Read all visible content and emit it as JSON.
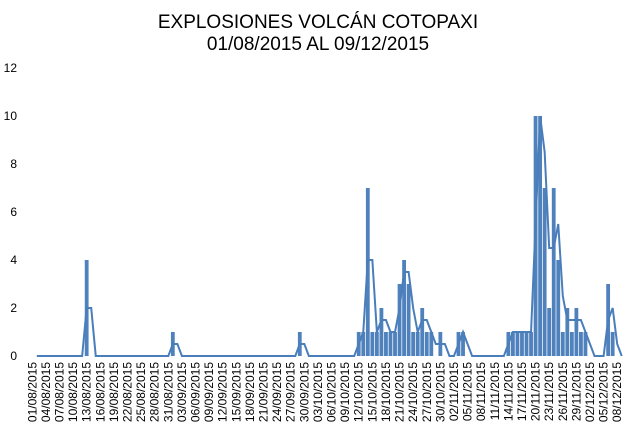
{
  "chart_data": {
    "type": "bar",
    "title": "EXPLOSIONES  VOLCÁN COTOPAXI",
    "subtitle": "01/08/2015 AL 09/12/2015",
    "categories": [
      "01/08/2015",
      null,
      null,
      "04/08/2015",
      null,
      null,
      "07/08/2015",
      null,
      null,
      "10/08/2015",
      null,
      null,
      "13/08/2015",
      null,
      null,
      "16/08/2015",
      null,
      null,
      "19/08/2015",
      null,
      null,
      "22/08/2015",
      null,
      null,
      "25/08/2015",
      null,
      null,
      "28/08/2015",
      null,
      null,
      "31/08/2015",
      null,
      null,
      "03/09/2015",
      null,
      null,
      "06/09/2015",
      null,
      null,
      "09/09/2015",
      null,
      null,
      "12/09/2015",
      null,
      null,
      "15/09/2015",
      null,
      null,
      "18/09/2015",
      null,
      null,
      "21/09/2015",
      null,
      null,
      "24/09/2015",
      null,
      null,
      "27/09/2015",
      null,
      null,
      "30/09/2015",
      null,
      null,
      "03/10/2015",
      null,
      null,
      "06/10/2015",
      null,
      null,
      "09/10/2015",
      null,
      null,
      "12/10/2015",
      null,
      null,
      "15/10/2015",
      null,
      null,
      "18/10/2015",
      null,
      null,
      "21/10/2015",
      null,
      null,
      "24/10/2015",
      null,
      null,
      "27/10/2015",
      null,
      null,
      "30/10/2015",
      null,
      null,
      "02/11/2015",
      null,
      null,
      "05/11/2015",
      null,
      null,
      "08/11/2015",
      null,
      null,
      "11/11/2015",
      null,
      null,
      "14/11/2015",
      null,
      null,
      "17/11/2015",
      null,
      null,
      "20/11/2015",
      null,
      null,
      "23/11/2015",
      null,
      null,
      "26/11/2015",
      null,
      null,
      "29/11/2015",
      null,
      null,
      "02/12/2015",
      null,
      null,
      "05/12/2015",
      null,
      null,
      "08/12/2015",
      null
    ],
    "series": [
      {
        "type": "bar",
        "color": "#4f81bd",
        "values": [
          0,
          0,
          0,
          0,
          0,
          0,
          0,
          0,
          0,
          0,
          0,
          0,
          4,
          0,
          0,
          0,
          0,
          0,
          0,
          0,
          0,
          0,
          0,
          0,
          0,
          0,
          0,
          0,
          0,
          0,
          0,
          1,
          0,
          0,
          0,
          0,
          0,
          0,
          0,
          0,
          0,
          0,
          0,
          0,
          0,
          0,
          0,
          0,
          0,
          0,
          0,
          0,
          0,
          0,
          0,
          0,
          0,
          0,
          0,
          1,
          0,
          0,
          0,
          0,
          0,
          0,
          0,
          0,
          0,
          0,
          0,
          0,
          1,
          1,
          7,
          1,
          1,
          2,
          1,
          1,
          1,
          3,
          4,
          3,
          1,
          1,
          2,
          1,
          1,
          0,
          1,
          0,
          0,
          0,
          1,
          1,
          0,
          0,
          0,
          0,
          0,
          0,
          0,
          0,
          0,
          1,
          1,
          1,
          1,
          1,
          1,
          10,
          10,
          7,
          2,
          7,
          4,
          1,
          2,
          1,
          2,
          1,
          1,
          0,
          0,
          0,
          0,
          3,
          1,
          0,
          0
        ]
      },
      {
        "type": "line",
        "color": "#4a7ebb",
        "values": [
          null,
          0,
          0,
          0,
          0,
          0,
          0,
          0,
          0,
          0,
          0,
          0,
          2,
          2,
          0,
          0,
          0,
          0,
          0,
          0,
          0,
          0,
          0,
          0,
          0,
          0,
          0,
          0,
          0,
          0,
          0,
          0.5,
          0.5,
          0,
          0,
          0,
          0,
          0,
          0,
          0,
          0,
          0,
          0,
          0,
          0,
          0,
          0,
          0,
          0,
          0,
          0,
          0,
          0,
          0,
          0,
          0,
          0,
          0,
          0,
          0.5,
          0.5,
          0,
          0,
          0,
          0,
          0,
          0,
          0,
          0,
          0,
          0,
          0,
          0.5,
          1,
          4,
          4,
          1,
          1.5,
          1.5,
          1,
          1,
          2,
          3.5,
          3.5,
          2,
          1,
          1.5,
          1.5,
          1,
          0.5,
          0.5,
          0.5,
          0,
          0,
          0.5,
          1,
          0.5,
          0,
          0,
          0,
          0,
          0,
          0,
          0,
          0,
          0.5,
          1,
          1,
          1,
          1,
          1,
          5.5,
          10,
          8.5,
          4.5,
          4.5,
          5.5,
          2.5,
          1.5,
          1.5,
          1.5,
          1.5,
          1,
          0.5,
          0,
          0,
          0,
          1.5,
          2,
          0.5,
          0
        ]
      }
    ],
    "ylim": [
      0,
      12
    ],
    "yticks": [
      0,
      2,
      4,
      6,
      8,
      10,
      12
    ],
    "grid": false
  }
}
